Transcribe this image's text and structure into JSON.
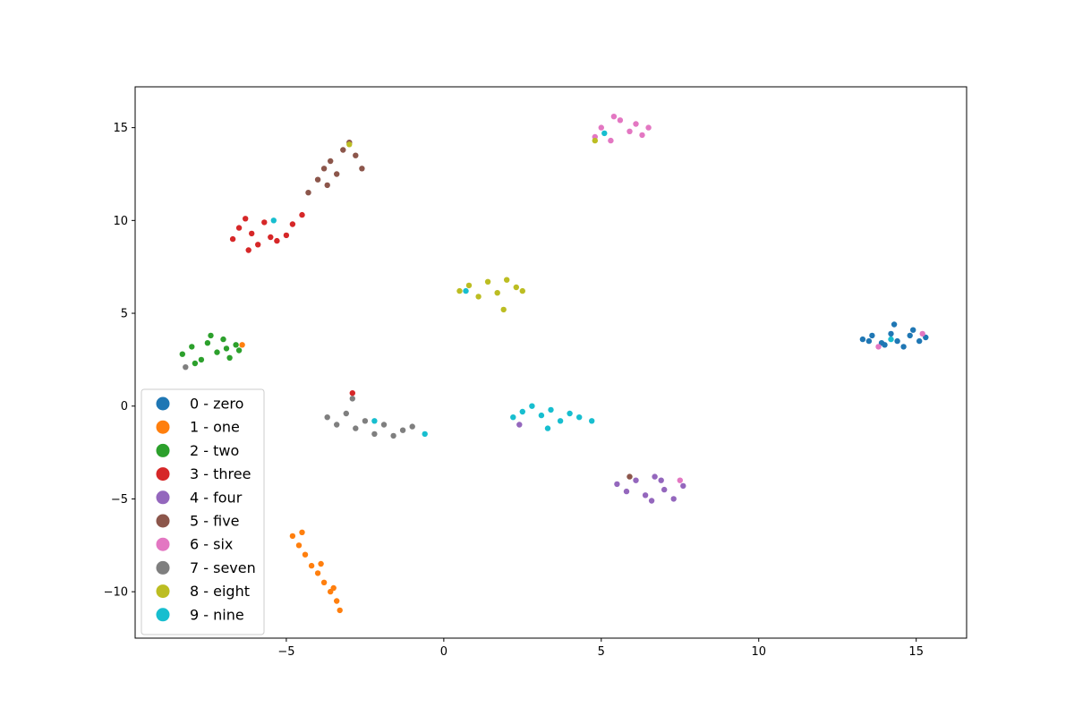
{
  "chart_data": {
    "type": "scatter",
    "title": "",
    "xlabel": "",
    "ylabel": "",
    "xlim": [
      -9.8,
      16.6
    ],
    "ylim": [
      -12.5,
      17.2
    ],
    "xticks": [
      -5,
      0,
      5,
      10,
      15
    ],
    "yticks": [
      -10,
      -5,
      0,
      5,
      10,
      15
    ],
    "xtick_labels": [
      "−5",
      "0",
      "5",
      "10",
      "15"
    ],
    "ytick_labels": [
      "−10",
      "−5",
      "0",
      "5",
      "10",
      "15"
    ],
    "grid": false,
    "legend_position": "lower-left",
    "series": [
      {
        "name": "0 - zero",
        "color": "#1f77b4",
        "points": [
          [
            13.3,
            3.6
          ],
          [
            13.6,
            3.8
          ],
          [
            13.9,
            3.4
          ],
          [
            14.2,
            3.9
          ],
          [
            14.4,
            3.5
          ],
          [
            14.6,
            3.2
          ],
          [
            14.8,
            3.8
          ],
          [
            15.1,
            3.5
          ],
          [
            15.3,
            3.7
          ],
          [
            14.0,
            3.3
          ],
          [
            14.3,
            4.4
          ],
          [
            13.5,
            3.5
          ],
          [
            14.9,
            4.1
          ]
        ]
      },
      {
        "name": "1 - one",
        "color": "#ff7f0e",
        "points": [
          [
            -4.8,
            -7.0
          ],
          [
            -4.6,
            -7.5
          ],
          [
            -4.4,
            -8.0
          ],
          [
            -4.2,
            -8.6
          ],
          [
            -4.0,
            -9.0
          ],
          [
            -3.8,
            -9.5
          ],
          [
            -3.6,
            -10.0
          ],
          [
            -3.4,
            -10.5
          ],
          [
            -3.3,
            -11.0
          ],
          [
            -4.5,
            -6.8
          ],
          [
            -3.9,
            -8.5
          ],
          [
            -3.5,
            -9.8
          ],
          [
            -6.4,
            3.3
          ]
        ]
      },
      {
        "name": "2 - two",
        "color": "#2ca02c",
        "points": [
          [
            -8.3,
            2.8
          ],
          [
            -8.0,
            3.2
          ],
          [
            -7.7,
            2.5
          ],
          [
            -7.5,
            3.4
          ],
          [
            -7.2,
            2.9
          ],
          [
            -7.0,
            3.6
          ],
          [
            -6.8,
            2.6
          ],
          [
            -6.6,
            3.3
          ],
          [
            -6.5,
            3.0
          ],
          [
            -7.9,
            2.3
          ],
          [
            -7.4,
            3.8
          ],
          [
            -6.9,
            3.1
          ]
        ]
      },
      {
        "name": "3 - three",
        "color": "#d62728",
        "points": [
          [
            -6.7,
            9.0
          ],
          [
            -6.5,
            9.6
          ],
          [
            -6.3,
            10.1
          ],
          [
            -6.1,
            9.3
          ],
          [
            -5.9,
            8.7
          ],
          [
            -5.7,
            9.9
          ],
          [
            -5.5,
            9.1
          ],
          [
            -5.3,
            8.9
          ],
          [
            -5.0,
            9.2
          ],
          [
            -4.8,
            9.8
          ],
          [
            -4.5,
            10.3
          ],
          [
            -6.2,
            8.4
          ],
          [
            -2.9,
            0.7
          ]
        ]
      },
      {
        "name": "4 - four",
        "color": "#9467bd",
        "points": [
          [
            5.5,
            -4.2
          ],
          [
            5.8,
            -4.6
          ],
          [
            6.1,
            -4.0
          ],
          [
            6.4,
            -4.8
          ],
          [
            6.7,
            -3.8
          ],
          [
            7.0,
            -4.5
          ],
          [
            7.3,
            -5.0
          ],
          [
            7.6,
            -4.3
          ],
          [
            6.6,
            -5.1
          ],
          [
            6.9,
            -4.0
          ],
          [
            2.4,
            -1.0
          ]
        ]
      },
      {
        "name": "5 - five",
        "color": "#8c564b",
        "points": [
          [
            -4.3,
            11.5
          ],
          [
            -4.0,
            12.2
          ],
          [
            -3.8,
            12.8
          ],
          [
            -3.6,
            13.2
          ],
          [
            -3.4,
            12.5
          ],
          [
            -3.2,
            13.8
          ],
          [
            -3.0,
            14.2
          ],
          [
            -2.8,
            13.5
          ],
          [
            -2.6,
            12.8
          ],
          [
            -3.7,
            11.9
          ],
          [
            5.9,
            -3.8
          ]
        ]
      },
      {
        "name": "6 - six",
        "color": "#e377c2",
        "points": [
          [
            4.8,
            14.5
          ],
          [
            5.0,
            15.0
          ],
          [
            5.3,
            14.3
          ],
          [
            5.6,
            15.4
          ],
          [
            5.9,
            14.8
          ],
          [
            6.1,
            15.2
          ],
          [
            6.3,
            14.6
          ],
          [
            6.5,
            15.0
          ],
          [
            5.4,
            15.6
          ],
          [
            15.2,
            3.9
          ],
          [
            13.8,
            3.2
          ],
          [
            7.5,
            -4.0
          ]
        ]
      },
      {
        "name": "7 - seven",
        "color": "#7f7f7f",
        "points": [
          [
            -3.7,
            -0.6
          ],
          [
            -3.4,
            -1.0
          ],
          [
            -3.1,
            -0.4
          ],
          [
            -2.8,
            -1.2
          ],
          [
            -2.5,
            -0.8
          ],
          [
            -2.2,
            -1.5
          ],
          [
            -1.9,
            -1.0
          ],
          [
            -1.6,
            -1.6
          ],
          [
            -1.3,
            -1.3
          ],
          [
            -1.0,
            -1.1
          ],
          [
            -2.9,
            0.4
          ],
          [
            -8.2,
            2.1
          ]
        ]
      },
      {
        "name": "8 - eight",
        "color": "#bcbd22",
        "points": [
          [
            0.5,
            6.2
          ],
          [
            0.8,
            6.5
          ],
          [
            1.1,
            5.9
          ],
          [
            1.4,
            6.7
          ],
          [
            1.7,
            6.1
          ],
          [
            2.0,
            6.8
          ],
          [
            2.3,
            6.4
          ],
          [
            2.5,
            6.2
          ],
          [
            1.9,
            5.2
          ],
          [
            -3.0,
            14.1
          ],
          [
            4.8,
            14.3
          ]
        ]
      },
      {
        "name": "9 - nine",
        "color": "#17becf",
        "points": [
          [
            2.2,
            -0.6
          ],
          [
            2.5,
            -0.3
          ],
          [
            2.8,
            0.0
          ],
          [
            3.1,
            -0.5
          ],
          [
            3.4,
            -0.2
          ],
          [
            3.7,
            -0.8
          ],
          [
            4.0,
            -0.4
          ],
          [
            4.3,
            -0.6
          ],
          [
            4.7,
            -0.8
          ],
          [
            3.3,
            -1.2
          ],
          [
            0.7,
            6.2
          ],
          [
            5.1,
            14.7
          ],
          [
            14.2,
            3.6
          ],
          [
            -5.4,
            10.0
          ],
          [
            -2.2,
            -0.8
          ],
          [
            -0.6,
            -1.5
          ]
        ]
      }
    ]
  }
}
